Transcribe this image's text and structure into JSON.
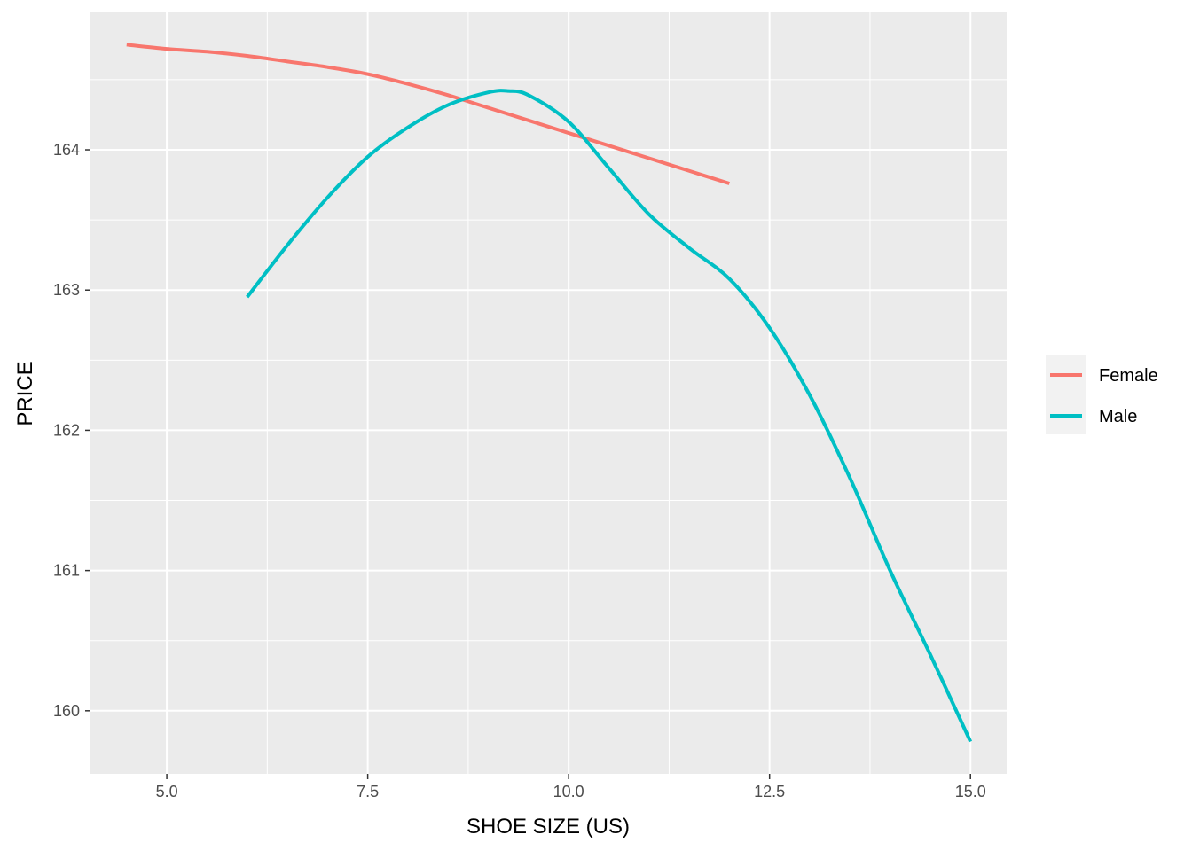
{
  "chart_data": {
    "type": "line",
    "title": "",
    "xlabel": "SHOE SIZE (US)",
    "ylabel": "PRICE",
    "xlim": [
      4.05,
      15.45
    ],
    "ylim": [
      159.55,
      164.98
    ],
    "x_ticks": [
      5.0,
      7.5,
      10.0,
      12.5,
      15.0
    ],
    "x_tick_labels": [
      "5.0",
      "7.5",
      "10.0",
      "12.5",
      "15.0"
    ],
    "x_minor_ticks": [
      6.25,
      8.75,
      11.25,
      13.75
    ],
    "y_ticks": [
      160,
      161,
      162,
      163,
      164
    ],
    "y_tick_labels": [
      "160",
      "161",
      "162",
      "163",
      "164"
    ],
    "y_minor_ticks": [
      160.5,
      161.5,
      162.5,
      163.5,
      164.5
    ],
    "grid": true,
    "panel_background": "#ebebeb",
    "grid_color": "#ffffff",
    "legend_position": "right",
    "series": [
      {
        "name": "Female",
        "color": "#f8766d",
        "x": [
          4.5,
          5.0,
          5.5,
          6.0,
          6.5,
          7.0,
          7.5,
          8.0,
          8.5,
          9.0,
          9.5,
          10.0,
          10.5,
          11.0,
          11.5,
          12.0
        ],
        "y": [
          164.75,
          164.72,
          164.7,
          164.67,
          164.63,
          164.59,
          164.54,
          164.47,
          164.39,
          164.3,
          164.21,
          164.12,
          164.03,
          163.94,
          163.85,
          163.76
        ]
      },
      {
        "name": "Male",
        "color": "#00bfc4",
        "x": [
          6.0,
          6.5,
          7.0,
          7.5,
          8.0,
          8.5,
          9.0,
          9.25,
          9.5,
          10.0,
          10.5,
          11.0,
          11.5,
          12.0,
          12.5,
          13.0,
          13.5,
          14.0,
          14.5,
          15.0
        ],
        "y": [
          162.95,
          163.32,
          163.66,
          163.95,
          164.16,
          164.32,
          164.41,
          164.42,
          164.39,
          164.2,
          163.87,
          163.54,
          163.3,
          163.08,
          162.73,
          162.25,
          161.66,
          161.0,
          160.4,
          159.78
        ]
      }
    ]
  }
}
